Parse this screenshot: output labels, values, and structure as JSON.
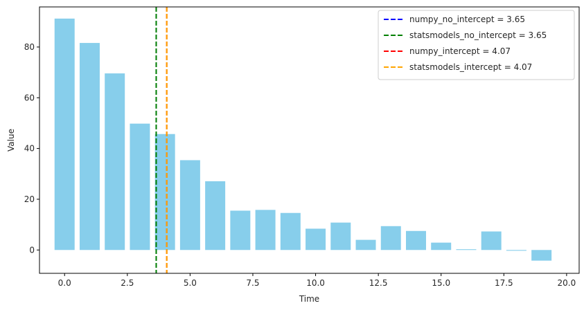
{
  "chart_data": {
    "type": "bar",
    "title": "",
    "xlabel": "Time",
    "ylabel": "Value",
    "bar_color": "#87ceeb",
    "x": [
      0,
      1,
      2,
      3,
      4,
      5,
      6,
      7,
      8,
      9,
      10,
      11,
      12,
      13,
      14,
      15,
      16,
      17,
      18,
      19
    ],
    "values": [
      91.2,
      81.6,
      69.6,
      49.8,
      45.7,
      35.4,
      27.1,
      15.5,
      15.8,
      14.6,
      8.4,
      10.8,
      4.0,
      9.4,
      7.5,
      2.9,
      0.3,
      7.3,
      -0.3,
      -4.2
    ],
    "bar_width": 0.8,
    "xlim": [
      -1.0,
      20.5
    ],
    "ylim": [
      -9.2,
      95.8
    ],
    "xticks": [
      0.0,
      2.5,
      5.0,
      7.5,
      10.0,
      12.5,
      15.0,
      17.5,
      20.0
    ],
    "xtick_labels": [
      "0.0",
      "2.5",
      "5.0",
      "7.5",
      "10.0",
      "12.5",
      "15.0",
      "17.5",
      "20.0"
    ],
    "yticks": [
      0,
      20,
      40,
      60,
      80
    ],
    "ytick_labels": [
      "0",
      "20",
      "40",
      "60",
      "80"
    ],
    "vlines": [
      {
        "label": "numpy_no_intercept = 3.65",
        "x": 3.65,
        "color": "#0000ff"
      },
      {
        "label": "statsmodels_no_intercept = 3.65",
        "x": 3.65,
        "color": "#008000"
      },
      {
        "label": "numpy_intercept = 4.07",
        "x": 4.07,
        "color": "#ff0000"
      },
      {
        "label": "statsmodels_intercept = 4.07",
        "x": 4.07,
        "color": "#ffa500"
      }
    ],
    "legend_position": "top-right",
    "grid": false
  }
}
